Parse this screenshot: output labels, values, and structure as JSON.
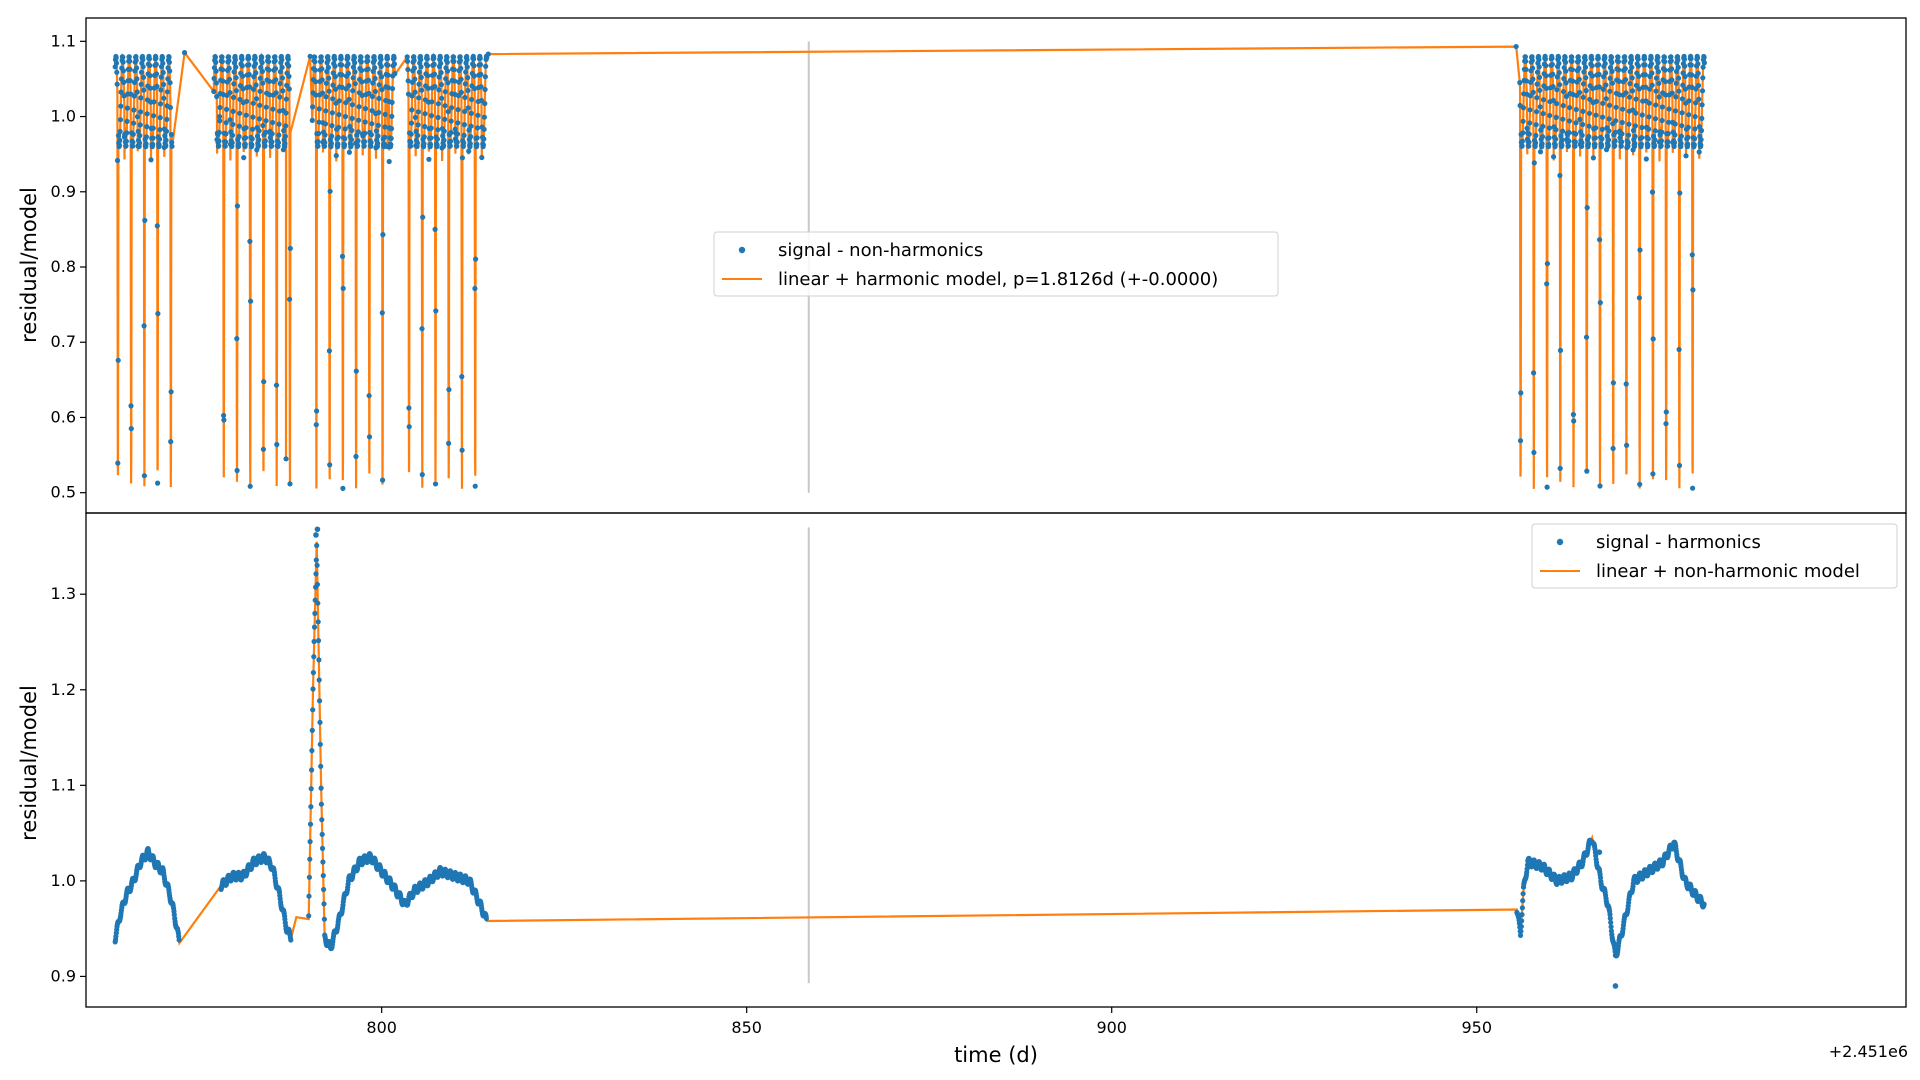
{
  "colors": {
    "signal": "#1f77b4",
    "model": "#ff7f0e",
    "gap_marker": "#c8c8c8",
    "axes": "#000000"
  },
  "x_axis": {
    "label": "time (d)",
    "offset_label": "+2.451e6",
    "ticks": [
      "800",
      "850",
      "900",
      "950"
    ],
    "tick_values": [
      800,
      850,
      900,
      950
    ],
    "range": [
      759.5,
      1008.8
    ]
  },
  "chart_data": [
    {
      "type": "scatter",
      "panel": "top",
      "ylabel": "residual/model",
      "ylim": [
        0.473,
        1.131
      ],
      "yticks": [
        "0.5",
        "0.6",
        "0.7",
        "0.8",
        "0.9",
        "1.0",
        "1.1"
      ],
      "ytick_values": [
        0.5,
        0.6,
        0.7,
        0.8,
        0.9,
        1.0,
        1.1
      ],
      "legend_position": "center",
      "gap_marker_x": 858.5,
      "series": [
        {
          "name": "signal - non-harmonics",
          "kind": "points"
        },
        {
          "name": "linear + harmonic model, p=1.8126d (+-0.0000)",
          "kind": "line"
        }
      ],
      "period_days": 1.8126,
      "baseline": 1.02,
      "baseline_oscillation": 0.06,
      "eclipse_depth_min": 0.505,
      "observing_segments": [
        [
          763.5,
          771.3
        ],
        [
          777.0,
          787.5
        ],
        [
          790.5,
          801.8
        ],
        [
          803.5,
          814.4
        ],
        [
          955.9,
          981.2
        ]
      ],
      "lead_points": [
        [
          773.0,
          1.085
        ],
        [
          777.8,
          1.0
        ],
        [
          786.9,
          0.545
        ],
        [
          790.2,
          1.08
        ],
        [
          800.8,
          0.96
        ],
        [
          814.6,
          1.083
        ],
        [
          955.4,
          1.093
        ]
      ]
    },
    {
      "type": "scatter",
      "panel": "bottom",
      "ylabel": "residual/model",
      "ylim": [
        0.868,
        1.385
      ],
      "yticks": [
        "0.9",
        "1.0",
        "1.1",
        "1.2",
        "1.3"
      ],
      "ytick_values": [
        0.9,
        1.0,
        1.1,
        1.2,
        1.3
      ],
      "legend_position": "upper right",
      "gap_marker_x": 858.5,
      "series": [
        {
          "name": "signal - harmonics",
          "kind": "points"
        },
        {
          "name": "linear + non-harmonic model",
          "kind": "line"
        }
      ],
      "curve": [
        [
          763.5,
          0.94
        ],
        [
          764.2,
          0.965
        ],
        [
          765.0,
          0.985
        ],
        [
          766.0,
          1.0
        ],
        [
          767.0,
          1.02
        ],
        [
          768.0,
          1.03
        ],
        [
          769.0,
          1.018
        ],
        [
          770.0,
          1.01
        ],
        [
          771.0,
          0.985
        ],
        [
          771.6,
          0.965
        ],
        [
          772.3,
          0.935
        ],
        [
          778.0,
          0.995
        ],
        [
          779.5,
          1.005
        ],
        [
          781.0,
          1.005
        ],
        [
          782.5,
          1.02
        ],
        [
          784.0,
          1.025
        ],
        [
          785.0,
          1.015
        ],
        [
          786.0,
          0.985
        ],
        [
          787.0,
          0.95
        ],
        [
          787.6,
          0.94
        ],
        [
          788.3,
          0.962
        ],
        [
          790.0,
          0.96
        ],
        [
          790.6,
          1.2
        ],
        [
          791.1,
          1.355
        ],
        [
          791.7,
          1.1
        ],
        [
          792.2,
          0.94
        ],
        [
          793.0,
          0.93
        ],
        [
          794.2,
          0.96
        ],
        [
          795.5,
          1.0
        ],
        [
          797.0,
          1.02
        ],
        [
          798.5,
          1.025
        ],
        [
          800.0,
          1.01
        ],
        [
          801.5,
          0.995
        ],
        [
          803.2,
          0.975
        ],
        [
          804.5,
          0.99
        ],
        [
          806.5,
          1.0
        ],
        [
          808.0,
          1.01
        ],
        [
          810.0,
          1.005
        ],
        [
          812.0,
          1.0
        ],
        [
          813.5,
          0.975
        ],
        [
          814.4,
          0.958
        ],
        [
          955.5,
          0.97
        ],
        [
          956.0,
          0.945
        ],
        [
          956.4,
          0.99
        ],
        [
          957.0,
          1.02
        ],
        [
          959.0,
          1.015
        ],
        [
          961.0,
          1.0
        ],
        [
          963.0,
          1.005
        ],
        [
          964.5,
          1.02
        ],
        [
          965.8,
          1.045
        ],
        [
          967.0,
          1.0
        ],
        [
          968.0,
          0.975
        ],
        [
          969.0,
          0.92
        ],
        [
          970.0,
          0.95
        ],
        [
          971.5,
          1.0
        ],
        [
          973.5,
          1.01
        ],
        [
          975.5,
          1.02
        ],
        [
          977.0,
          1.04
        ],
        [
          978.5,
          1.0
        ],
        [
          980.0,
          0.985
        ],
        [
          981.2,
          0.975
        ]
      ],
      "outliers": [
        [
          791.2,
          1.368
        ],
        [
          791.0,
          1.362
        ],
        [
          966.8,
          1.03
        ],
        [
          969.0,
          0.89
        ]
      ]
    }
  ]
}
